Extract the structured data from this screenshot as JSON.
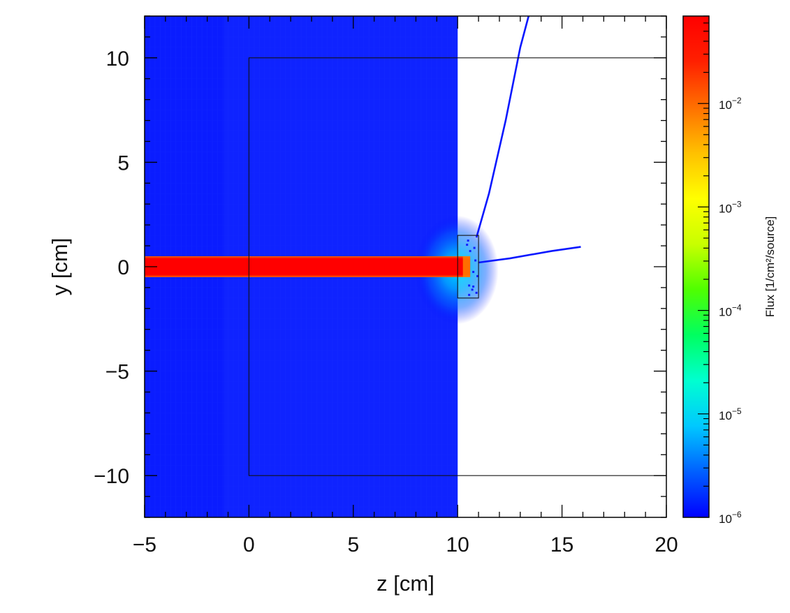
{
  "chart_data": {
    "type": "heatmap",
    "title": "",
    "xlabel": "z [cm]",
    "ylabel": "y [cm]",
    "xlim": [
      -5,
      20
    ],
    "ylim": [
      -12,
      12
    ],
    "x_ticks": [
      -5,
      0,
      5,
      10,
      15,
      20
    ],
    "y_ticks": [
      -10,
      -5,
      0,
      5,
      10
    ],
    "x_tick_labels": [
      "−5",
      "0",
      "5",
      "10",
      "15",
      "20"
    ],
    "y_tick_labels": [
      "−10",
      "−5",
      "0",
      "5",
      "10"
    ],
    "grid": false,
    "colorbar": {
      "title": "Flux [1/cm²/source]",
      "scale": "log",
      "range": [
        1e-06,
        0.07
      ],
      "ticks": [
        {
          "value": 1e-06,
          "base": "10",
          "exp": "−6"
        },
        {
          "value": 1e-05,
          "base": "10",
          "exp": "−5"
        },
        {
          "value": 0.0001,
          "base": "10",
          "exp": "−4"
        },
        {
          "value": 0.001,
          "base": "10",
          "exp": "−3"
        },
        {
          "value": 0.01,
          "base": "10",
          "exp": "−2"
        }
      ],
      "colors": [
        "#0000ff",
        "#0060ff",
        "#00c8ff",
        "#00ffd0",
        "#00ff60",
        "#50ff00",
        "#c8ff00",
        "#ffff00",
        "#ffc000",
        "#ff7000",
        "#ff2000",
        "#ff0000"
      ]
    },
    "regions": [
      {
        "name": "background flux",
        "z": [
          -5,
          10
        ],
        "y": [
          -12,
          12
        ],
        "flux": 1.2e-06
      },
      {
        "name": "beam",
        "z": [
          -5,
          10.6
        ],
        "y": [
          -0.5,
          0.5
        ],
        "flux": 0.07
      }
    ],
    "tracks": [
      {
        "name": "track-upper",
        "points": [
          [
            10.9,
            1.4
          ],
          [
            11.5,
            3.5
          ],
          [
            12.3,
            7.0
          ],
          [
            13.0,
            10.5
          ],
          [
            13.4,
            12.0
          ]
        ]
      },
      {
        "name": "track-lower",
        "points": [
          [
            11.0,
            0.2
          ],
          [
            12.5,
            0.4
          ],
          [
            14.5,
            0.75
          ],
          [
            15.9,
            0.95
          ]
        ]
      }
    ],
    "outlines": [
      {
        "name": "world-box",
        "z": [
          0,
          20
        ],
        "y": [
          -10,
          10
        ]
      },
      {
        "name": "target-box",
        "z": [
          10,
          11
        ],
        "y": [
          -1.5,
          1.5
        ]
      }
    ]
  }
}
